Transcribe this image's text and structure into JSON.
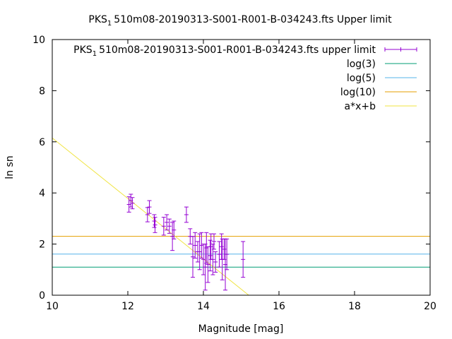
{
  "chart_data": {
    "type": "scatter",
    "title": {
      "pre": "PKS",
      "sub": "1",
      "post": "510m08-20190313-S001-R001-B-034243.fts Upper limit"
    },
    "xlabel": "Magnitude [mag]",
    "ylabel": "ln sn",
    "xlim": [
      10,
      20
    ],
    "ylim": [
      0,
      10
    ],
    "xticks": [
      "10",
      "12",
      "14",
      "16",
      "18",
      "20"
    ],
    "yticks": [
      "0",
      "2",
      "4",
      "6",
      "8",
      "10"
    ],
    "grid": false,
    "legend_position": "top-right",
    "colors": {
      "points": "#9400d3",
      "log3": "#009e73",
      "log5": "#56b4e9",
      "log10": "#e69f00",
      "fit": "#f0e442"
    },
    "legend": [
      {
        "key": "points",
        "pre": "PKS",
        "sub": "1",
        "post": "510m08-20190313-S001-R001-B-034243.fts upper limit"
      },
      {
        "key": "log3",
        "label": "log(3)"
      },
      {
        "key": "log5",
        "label": "log(5)"
      },
      {
        "key": "log10",
        "label": "log(10)"
      },
      {
        "key": "fit",
        "label": "a*x+b"
      }
    ],
    "hlines": {
      "log3": 1.0986,
      "log5": 1.6094,
      "log10": 2.3026
    },
    "fit_line": {
      "x": [
        10,
        15.2
      ],
      "y": [
        6.15,
        0.0
      ]
    },
    "points": [
      {
        "x": 12.03,
        "y": 3.55,
        "err": 0.3
      },
      {
        "x": 12.08,
        "y": 3.7,
        "err": 0.25
      },
      {
        "x": 12.12,
        "y": 3.6,
        "err": 0.22
      },
      {
        "x": 12.52,
        "y": 3.15,
        "err": 0.28
      },
      {
        "x": 12.57,
        "y": 3.45,
        "err": 0.25
      },
      {
        "x": 12.7,
        "y": 2.9,
        "err": 0.25
      },
      {
        "x": 12.72,
        "y": 2.75,
        "err": 0.3
      },
      {
        "x": 12.95,
        "y": 2.7,
        "err": 0.35
      },
      {
        "x": 13.03,
        "y": 2.85,
        "err": 0.3
      },
      {
        "x": 13.1,
        "y": 2.7,
        "err": 0.28
      },
      {
        "x": 13.18,
        "y": 2.3,
        "err": 0.55
      },
      {
        "x": 13.22,
        "y": 2.55,
        "err": 0.35
      },
      {
        "x": 13.55,
        "y": 3.15,
        "err": 0.3
      },
      {
        "x": 13.65,
        "y": 2.3,
        "err": 0.3
      },
      {
        "x": 13.72,
        "y": 1.5,
        "err": 0.8
      },
      {
        "x": 13.78,
        "y": 1.95,
        "err": 0.5
      },
      {
        "x": 13.85,
        "y": 1.7,
        "err": 0.4
      },
      {
        "x": 13.9,
        "y": 1.7,
        "err": 0.7
      },
      {
        "x": 13.95,
        "y": 1.95,
        "err": 0.5
      },
      {
        "x": 14.0,
        "y": 1.4,
        "err": 0.6
      },
      {
        "x": 14.05,
        "y": 1.1,
        "err": 0.9
      },
      {
        "x": 14.08,
        "y": 1.85,
        "err": 0.6
      },
      {
        "x": 14.12,
        "y": 1.2,
        "err": 0.7
      },
      {
        "x": 14.18,
        "y": 1.55,
        "err": 0.6
      },
      {
        "x": 14.2,
        "y": 1.9,
        "err": 0.5
      },
      {
        "x": 14.25,
        "y": 1.4,
        "err": 0.6
      },
      {
        "x": 14.28,
        "y": 2.1,
        "err": 0.3
      },
      {
        "x": 14.32,
        "y": 1.3,
        "err": 0.4
      },
      {
        "x": 14.42,
        "y": 1.6,
        "err": 0.5
      },
      {
        "x": 14.48,
        "y": 1.9,
        "err": 0.5
      },
      {
        "x": 14.5,
        "y": 1.4,
        "err": 0.8
      },
      {
        "x": 14.55,
        "y": 1.8,
        "err": 0.4
      },
      {
        "x": 14.58,
        "y": 1.2,
        "err": 1.0
      },
      {
        "x": 14.62,
        "y": 1.6,
        "err": 0.6
      },
      {
        "x": 15.05,
        "y": 1.4,
        "err": 0.7
      }
    ]
  }
}
